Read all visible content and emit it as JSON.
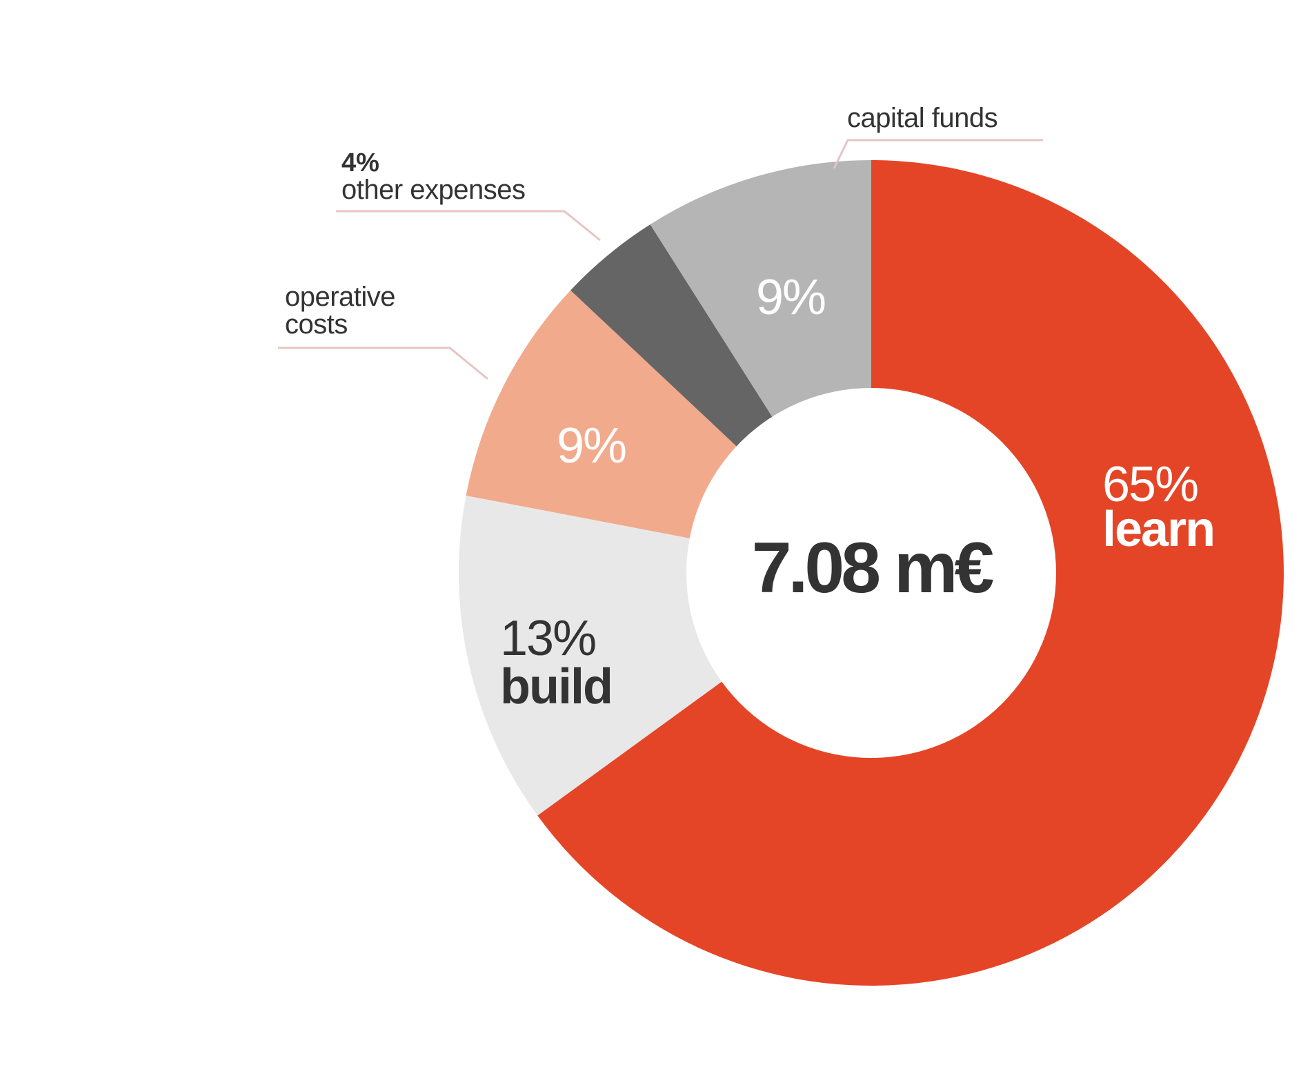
{
  "chart_data": {
    "type": "pie",
    "donut": true,
    "center_label": "7.08 m€",
    "start_angle_deg": 0,
    "direction": "clockwise",
    "slices": [
      {
        "key": "learn",
        "value": 65,
        "pct_label": "65%",
        "name": "learn",
        "color": "#e54527",
        "label_color": "#ffffff"
      },
      {
        "key": "build",
        "value": 13,
        "pct_label": "13%",
        "name": "build",
        "color": "#e8e8e8",
        "label_color": "#333333"
      },
      {
        "key": "operative",
        "value": 9,
        "pct_label": "9%",
        "name": "operative costs",
        "color": "#f2aa8c",
        "label_color": "#ffffff"
      },
      {
        "key": "other",
        "value": 4,
        "pct_label": "4%",
        "name": "other expenses",
        "color": "#666566",
        "label_color": "#333333"
      },
      {
        "key": "capital",
        "value": 9,
        "pct_label": "9%",
        "name": "capital funds",
        "color": "#b5b5b5",
        "label_color": "#ffffff"
      }
    ],
    "leader_color": "#e8c4c2",
    "text_color": "#333333"
  }
}
